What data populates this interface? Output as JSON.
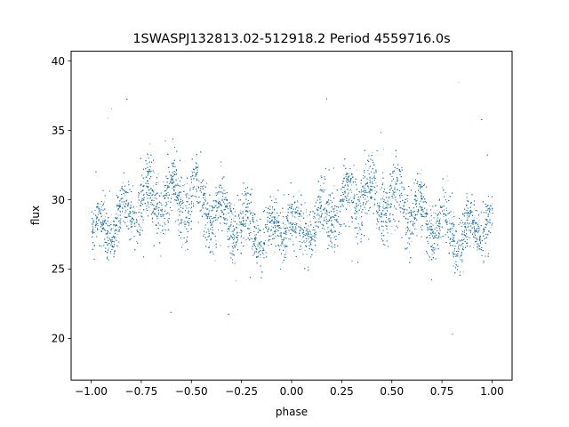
{
  "chart_data": {
    "type": "scatter",
    "title": "1SWASPJ132813.02-512918.2 Period 4559716.0s",
    "xlabel": "phase",
    "ylabel": "flux",
    "xlim": [
      -1.1,
      1.1
    ],
    "ylim": [
      17.0,
      40.7
    ],
    "xticks": [
      -1.0,
      -0.75,
      -0.5,
      -0.25,
      0.0,
      0.25,
      0.5,
      0.75,
      1.0
    ],
    "xtick_labels": [
      "−1.00",
      "−0.75",
      "−0.50",
      "−0.25",
      "0.00",
      "0.25",
      "0.50",
      "0.75",
      "1.00"
    ],
    "yticks": [
      20,
      25,
      30,
      35,
      40
    ],
    "ytick_labels": [
      "20",
      "25",
      "30",
      "35",
      "40"
    ],
    "grid": false,
    "legend": "none",
    "point_color": "#1f77b4",
    "x_range": [
      -1.0,
      1.0
    ],
    "n_points_approx": 20000,
    "folded": true,
    "profile": {
      "phase": [
        0.0,
        0.05,
        0.1,
        0.15,
        0.2,
        0.25,
        0.3,
        0.35,
        0.4,
        0.45,
        0.5,
        0.55,
        0.6,
        0.65,
        0.7,
        0.75,
        0.8,
        0.85,
        0.9,
        0.95,
        1.0
      ],
      "median_flux": [
        27.6,
        27.9,
        28.2,
        28.6,
        29.2,
        29.8,
        30.3,
        30.4,
        30.1,
        30.2,
        30.0,
        29.7,
        29.2,
        28.8,
        28.5,
        28.2,
        27.7,
        27.5,
        27.6,
        28.2,
        28.8
      ],
      "lower_envelope": [
        24.8,
        25.3,
        25.6,
        26.0,
        26.5,
        27.0,
        27.2,
        27.3,
        26.9,
        27.3,
        26.8,
        26.6,
        26.4,
        26.0,
        25.8,
        25.5,
        25.0,
        24.9,
        25.1,
        25.6,
        26.0
      ],
      "upper_envelope": [
        30.5,
        31.0,
        31.5,
        32.0,
        33.0,
        33.8,
        34.5,
        34.8,
        34.2,
        34.8,
        34.6,
        34.0,
        33.4,
        32.9,
        32.3,
        31.9,
        31.2,
        31.0,
        31.3,
        31.8,
        32.0
      ]
    }
  }
}
